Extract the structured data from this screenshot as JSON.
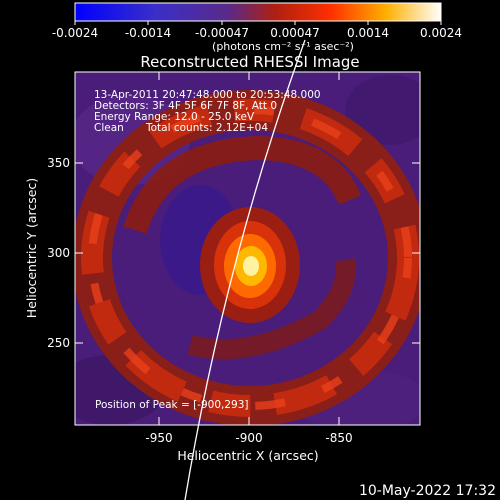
{
  "colorbar": {
    "tick_labels": [
      "-0.0024",
      "-0.0014",
      "-0.00047",
      "0.00047",
      "0.0014",
      "0.0024"
    ],
    "units_label": "(photons cm⁻² s⁻¹ asec⁻²)"
  },
  "title": "Reconstructed RHESSI Image",
  "annotations": {
    "time_range": "13-Apr-2011 20:47:48.000 to 20:53:48.000",
    "detectors": "Detectors: 3F 4F 5F 6F 7F 8F, Att 0",
    "energy_range": "Energy Range: 12.0 - 25.0 keV",
    "clean_label": "Clean",
    "total_counts": "Total counts: 2.12E+04",
    "peak_position": "Position of Peak = [-900,293]"
  },
  "x_axis": {
    "label": "Heliocentric X (arcsec)",
    "ticks": [
      {
        "value": -950,
        "label": "-950"
      },
      {
        "value": -900,
        "label": "-900"
      },
      {
        "value": -850,
        "label": "-850"
      }
    ],
    "range": [
      -995,
      -885
    ]
  },
  "y_axis": {
    "label": "Heliocentric Y (arcsec)",
    "ticks": [
      {
        "value": 250,
        "label": "250"
      },
      {
        "value": 300,
        "label": "300"
      },
      {
        "value": 350,
        "label": "350"
      }
    ],
    "range": [
      205,
      385
    ]
  },
  "peak": {
    "x": -900,
    "y": 293
  },
  "footer_timestamp": "10-May-2022 17:32"
}
